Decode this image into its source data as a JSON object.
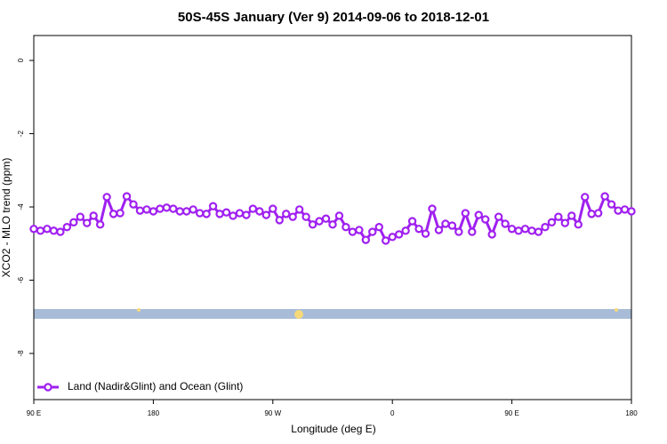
{
  "chart_data": {
    "type": "line",
    "title": "50S-45S January (Ver 9)   2014-09-06 to 2018-12-01",
    "xlabel": "Longitude (deg E)",
    "ylabel": "XCO2 - MLO trend (ppm)",
    "x": [
      90,
      95,
      100,
      105,
      110,
      115,
      120,
      125,
      130,
      135,
      140,
      145,
      150,
      155,
      160,
      165,
      170,
      175,
      180,
      185,
      190,
      195,
      200,
      205,
      210,
      215,
      220,
      225,
      230,
      235,
      240,
      245,
      250,
      255,
      260,
      265,
      270,
      275,
      280,
      285,
      290,
      295,
      300,
      305,
      310,
      315,
      320,
      325,
      330,
      335,
      340,
      345,
      350,
      355,
      360,
      365,
      370,
      375,
      380,
      385,
      390,
      395,
      400,
      405,
      410,
      415,
      420,
      425,
      430,
      435,
      440,
      445,
      450,
      455,
      460,
      465,
      470,
      475,
      480,
      485,
      490,
      495,
      500,
      505,
      510,
      515,
      520,
      525,
      530,
      535,
      540
    ],
    "series": [
      {
        "name": "Land (Nadir&Glint) and Ocean (Glint)",
        "color": "#a020f0",
        "values": [
          -4.6,
          -4.65,
          -4.6,
          -4.65,
          -4.68,
          -4.55,
          -4.42,
          -4.27,
          -4.44,
          -4.24,
          -4.48,
          -3.73,
          -4.19,
          -4.17,
          -3.71,
          -3.93,
          -4.1,
          -4.07,
          -4.12,
          -4.05,
          -4.02,
          -4.05,
          -4.12,
          -4.12,
          -4.07,
          -4.17,
          -4.19,
          -3.98,
          -4.19,
          -4.15,
          -4.24,
          -4.17,
          -4.22,
          -4.05,
          -4.12,
          -4.22,
          -4.05,
          -4.36,
          -4.19,
          -4.27,
          -4.07,
          -4.27,
          -4.48,
          -4.39,
          -4.32,
          -4.48,
          -4.24,
          -4.55,
          -4.68,
          -4.63,
          -4.9,
          -4.68,
          -4.55,
          -4.92,
          -4.82,
          -4.75,
          -4.65,
          -4.39,
          -4.6,
          -4.73,
          -4.05,
          -4.63,
          -4.46,
          -4.51,
          -4.68,
          -4.17,
          -4.68,
          -4.22,
          -4.34,
          -4.75,
          -4.27,
          -4.46,
          -4.6,
          -4.65,
          -4.6,
          -4.65,
          -4.68,
          -4.55,
          -4.42,
          -4.27,
          -4.44,
          -4.24,
          -4.48,
          -3.73,
          -4.19,
          -4.17,
          -3.71,
          -3.93,
          -4.1,
          -4.07,
          -4.12
        ]
      }
    ],
    "xlim": [
      90,
      540
    ],
    "xticks": [
      {
        "value": 90,
        "label": "90 E"
      },
      {
        "value": 180,
        "label": "180"
      },
      {
        "value": 270,
        "label": "90 W"
      },
      {
        "value": 360,
        "label": "0"
      },
      {
        "value": 450,
        "label": "90 E"
      },
      {
        "value": 540,
        "label": "180"
      }
    ],
    "ylim": [
      -9.26,
      0.68
    ],
    "yticks": [
      0,
      -2,
      -4,
      -6,
      -8
    ],
    "legend": "bottom-left"
  }
}
